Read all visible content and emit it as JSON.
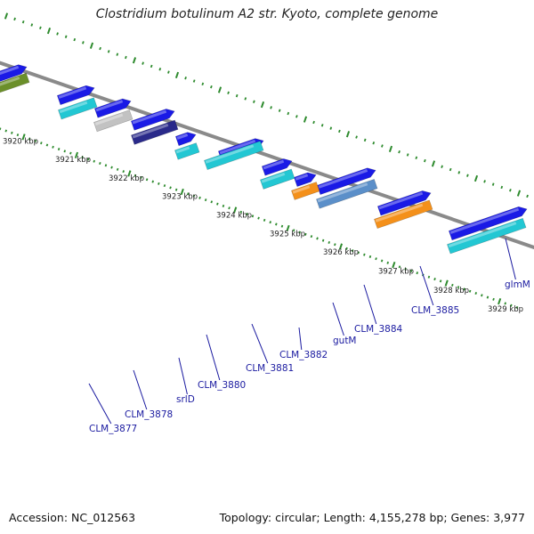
{
  "title": "Clostridium botulinum A2 str. Kyoto, complete genome",
  "footer": {
    "accession": "Accession: NC_012563",
    "stats": "Topology: circular; Length: 4,155,278 bp; Genes: 3,977"
  },
  "colors": {
    "backbone": "#8a8a8a",
    "tick": "#2e8b2e",
    "cds_blue": "#1a1ae6",
    "gene_cyan": "#22c7d3",
    "gene_gray": "#c2c2c2",
    "gene_navy": "#2a2a8a",
    "gene_orange": "#f4901a",
    "gene_steel": "#5b8fc9",
    "gene_olive": "#6b8f2a",
    "label": "#1a1aa0"
  },
  "kbp_labels": [
    "3920 kbp",
    "3921 kbp",
    "3922 kbp",
    "3923 kbp",
    "3924 kbp",
    "3925 kbp",
    "3926 kbp",
    "3927 kbp",
    "3928 kbp",
    "3929 kbp"
  ],
  "gene_labels": [
    "CLM_3877",
    "CLM_3878",
    "srlD",
    "CLM_3880",
    "CLM_3881",
    "CLM_3882",
    "gutM",
    "CLM_3884",
    "CLM_3885",
    "glmM"
  ]
}
